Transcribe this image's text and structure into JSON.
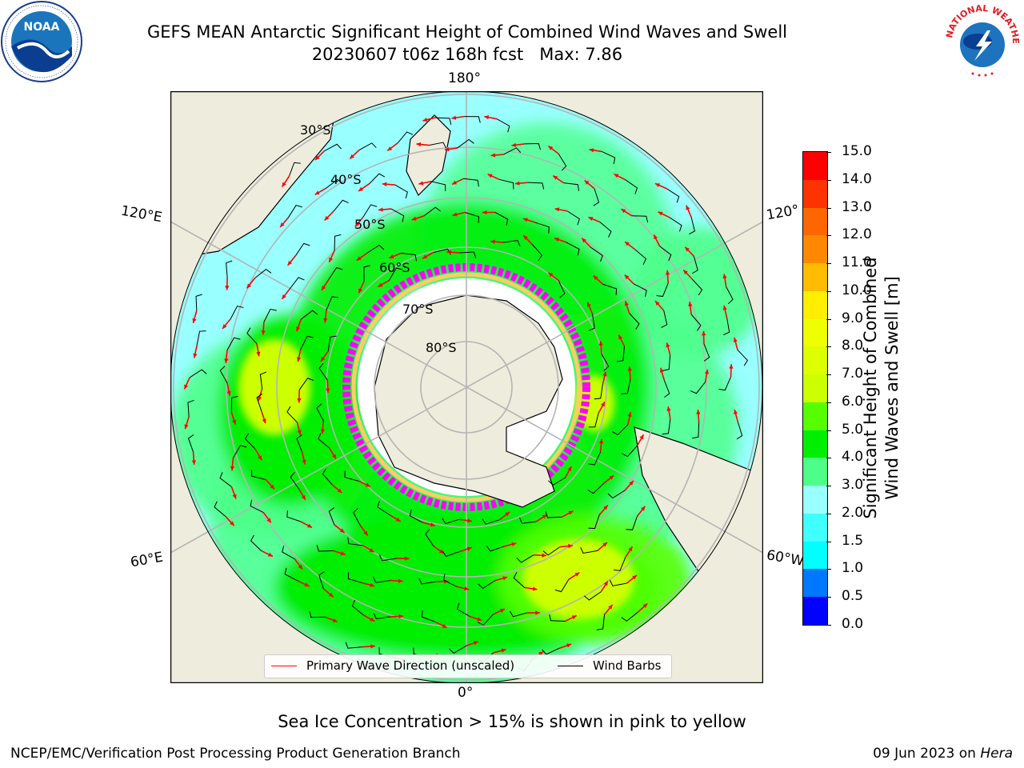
{
  "title": {
    "line1": "GEFS MEAN Antarctic Significant Height of Combined Wind Waves and Swell",
    "line2": "20230607 t06z 168h fcst   Max: 7.86"
  },
  "logos": {
    "left": {
      "icon": "noaa-logo",
      "text": "NOAA"
    },
    "right": {
      "icon": "nws-logo",
      "text": "NATIONAL WEATHER SERVICE"
    }
  },
  "map": {
    "projection": "south-polar-stereographic",
    "longitude_labels": {
      "top": "180°",
      "bottom": "0°",
      "upper_left": "120°E",
      "lower_left": "60°E",
      "upper_right": "120°",
      "lower_right": "60°W"
    },
    "latitude_labels": [
      "30°S",
      "40°S",
      "50°S",
      "60°S",
      "70°S",
      "80°S"
    ],
    "colors": {
      "land": "#eeecdc",
      "ice_edge": "#ff00ff",
      "ice_inner": "#ffcc66",
      "grid": "#b4b4b4",
      "wave_arrow": "#ff0000",
      "wind_barb": "#000000"
    }
  },
  "legend": {
    "primary_wave": "Primary Wave Direction (unscaled)",
    "wind_barbs": "Wind Barbs"
  },
  "colorbar": {
    "title_line1": "Significant Height of Combined",
    "title_line2": "Wind Waves and Swell [m]",
    "ticks": [
      "0.0",
      "0.5",
      "1.0",
      "1.5",
      "2.0",
      "3.0",
      "4.0",
      "5.0",
      "6.0",
      "7.0",
      "8.0",
      "9.0",
      "10.0",
      "11.0",
      "12.0",
      "13.0",
      "14.0",
      "15.0"
    ],
    "colors": [
      "#0000ff",
      "#0077ff",
      "#00ffff",
      "#40ffff",
      "#99ffff",
      "#4dff88",
      "#00ee00",
      "#55ff00",
      "#ccff00",
      "#ddff00",
      "#eeff00",
      "#ffee00",
      "#ffbb00",
      "#ff8800",
      "#ff6600",
      "#ff3300",
      "#ff0000"
    ]
  },
  "note": "Sea Ice Concentration > 15% is shown in pink to yellow",
  "footer": {
    "left": "NCEP/EMC/Verification Post Processing Product Generation Branch",
    "right_date": "09 Jun 2023 on ",
    "right_machine": "Hera"
  }
}
